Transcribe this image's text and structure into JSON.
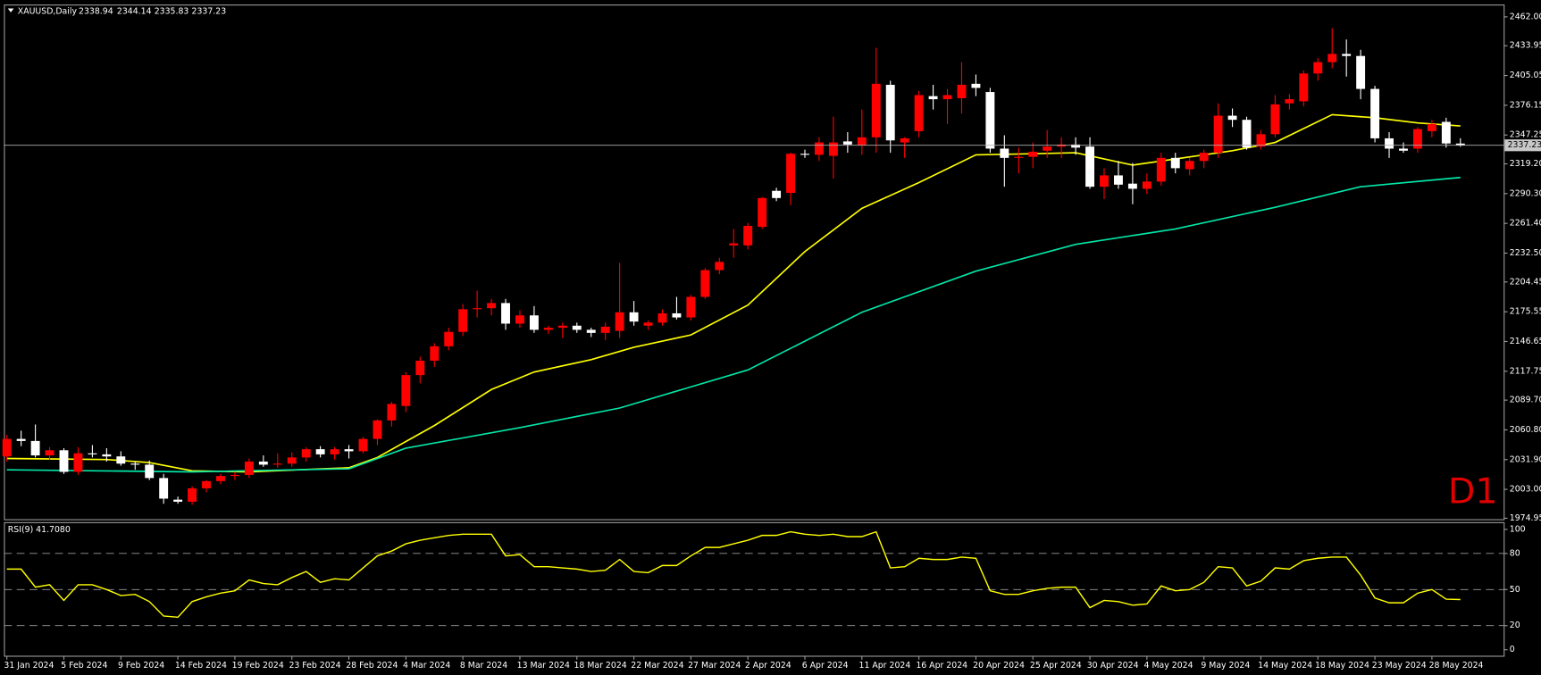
{
  "chart_data": [
    {
      "type": "candlestick",
      "title": "XAUUSD,Daily",
      "watermark": "D1",
      "categories": [
        "31 Jan 2024",
        null,
        null,
        null,
        "5 Feb 2024",
        null,
        null,
        null,
        "9 Feb 2024",
        null,
        null,
        null,
        "14 Feb 2024",
        null,
        null,
        null,
        "19 Feb 2024",
        null,
        null,
        null,
        "23 Feb 2024",
        null,
        null,
        null,
        "28 Feb 2024",
        null,
        null,
        null,
        "4 Mar 2024",
        null,
        null,
        null,
        "8 Mar 2024",
        null,
        null,
        null,
        "13 Mar 2024",
        null,
        null,
        null,
        "18 Mar 2024",
        null,
        null,
        null,
        "22 Mar 2024",
        null,
        null,
        null,
        "27 Mar 2024",
        null,
        null,
        null,
        "2 Apr 2024",
        null,
        null,
        null,
        "6 Apr 2024",
        null,
        null,
        null,
        "11 Apr 2024",
        null,
        null,
        null,
        "16 Apr 2024",
        null,
        null,
        null,
        "20 Apr 2024",
        null,
        null,
        null,
        "25 Apr 2024",
        null,
        null,
        null,
        "30 Apr 2024",
        null,
        null,
        null,
        "4 May 2024",
        null,
        null,
        null,
        "9 May 2024",
        null,
        null,
        null,
        "14 May 2024",
        null,
        null,
        null,
        "18 May 2024",
        null,
        null,
        null,
        "23 May 2024",
        null,
        null,
        null,
        "28 May 2024",
        null,
        null
      ],
      "open": [
        2035,
        2052,
        2050,
        2036,
        2041,
        2020,
        2038,
        2037,
        2035,
        2028,
        2027,
        2014,
        1993,
        1991,
        2004,
        2011,
        2016,
        2017,
        2030,
        2027,
        2028,
        2034,
        2042,
        2037,
        2042,
        2040,
        2052,
        2070,
        2084,
        2114,
        2128,
        2142,
        2156,
        2178,
        2179,
        2184,
        2164,
        2172,
        2158,
        2160,
        2162,
        2158,
        2155,
        2157,
        2175,
        2162,
        2165,
        2174,
        2170,
        2190,
        2216,
        2240,
        2240,
        2258,
        2293,
        2291,
        2329,
        2328,
        2327,
        2341,
        2337,
        2345,
        2396,
        2340,
        2351,
        2385,
        2382,
        2383,
        2397,
        2389,
        2334,
        2325,
        2326,
        2332,
        2336,
        2338,
        2336,
        2297,
        2308,
        2300,
        2295,
        2302,
        2325,
        2314,
        2322,
        2330,
        2366,
        2362,
        2336,
        2348,
        2378,
        2380,
        2407,
        2418,
        2426,
        2424,
        2392,
        2344,
        2334,
        2334,
        2351,
        2360,
        2338.94
      ],
      "high": [
        2056,
        2060,
        2066,
        2044,
        2043,
        2044,
        2046,
        2043,
        2040,
        2030,
        2031,
        2018,
        1996,
        2006,
        2012,
        2018,
        2020,
        2033,
        2036,
        2038,
        2039,
        2044,
        2045,
        2044,
        2046,
        2054,
        2071,
        2088,
        2117,
        2132,
        2145,
        2160,
        2183,
        2196,
        2188,
        2188,
        2177,
        2181,
        2162,
        2165,
        2165,
        2160,
        2165,
        2223,
        2186,
        2167,
        2178,
        2190,
        2192,
        2218,
        2228,
        2256,
        2262,
        2287,
        2296,
        2330,
        2333,
        2345,
        2365,
        2350,
        2372,
        2432,
        2400,
        2345,
        2390,
        2396,
        2392,
        2418,
        2406,
        2393,
        2347,
        2335,
        2340,
        2352,
        2345,
        2345,
        2345,
        2315,
        2322,
        2320,
        2310,
        2330,
        2330,
        2325,
        2333,
        2378,
        2373,
        2365,
        2352,
        2386,
        2387,
        2410,
        2422,
        2451,
        2440,
        2430,
        2395,
        2350,
        2340,
        2355,
        2362,
        2364,
        2344.14
      ],
      "low": [
        2030,
        2045,
        2034,
        2032,
        2018,
        2017,
        2034,
        2030,
        2026,
        2022,
        2012,
        1989,
        1989,
        1988,
        2000,
        2008,
        2012,
        2014,
        2025,
        2024,
        2025,
        2030,
        2034,
        2032,
        2033,
        2038,
        2046,
        2064,
        2078,
        2106,
        2122,
        2138,
        2152,
        2170,
        2172,
        2158,
        2160,
        2155,
        2154,
        2150,
        2155,
        2151,
        2148,
        2150,
        2162,
        2158,
        2162,
        2168,
        2167,
        2188,
        2212,
        2228,
        2236,
        2256,
        2283,
        2279,
        2325,
        2322,
        2305,
        2330,
        2328,
        2330,
        2330,
        2325,
        2345,
        2372,
        2358,
        2368,
        2385,
        2330,
        2297,
        2310,
        2315,
        2325,
        2325,
        2328,
        2295,
        2285,
        2295,
        2280,
        2290,
        2298,
        2310,
        2308,
        2315,
        2325,
        2355,
        2333,
        2333,
        2345,
        2372,
        2375,
        2400,
        2412,
        2404,
        2382,
        2340,
        2325,
        2330,
        2330,
        2345,
        2335,
        2335.83
      ],
      "close": [
        2052,
        2050,
        2036,
        2041,
        2020,
        2038,
        2037,
        2035,
        2028,
        2027,
        2014,
        1994,
        1991,
        2004,
        2011,
        2016,
        2017,
        2030,
        2027,
        2028,
        2034,
        2042,
        2037,
        2042,
        2040,
        2052,
        2070,
        2086,
        2114,
        2128,
        2142,
        2156,
        2178,
        2179,
        2184,
        2164,
        2172,
        2158,
        2160,
        2162,
        2158,
        2155,
        2161,
        2175,
        2166,
        2165,
        2174,
        2170,
        2190,
        2216,
        2224,
        2242,
        2259,
        2286,
        2286,
        2329,
        2328,
        2340,
        2340,
        2338,
        2345,
        2397,
        2342,
        2344,
        2386,
        2382,
        2386,
        2396,
        2393,
        2334,
        2325,
        2326,
        2331,
        2336,
        2338,
        2335,
        2297,
        2308,
        2299,
        2295,
        2302,
        2325,
        2315,
        2322,
        2330,
        2366,
        2362,
        2335,
        2348,
        2377,
        2382,
        2407,
        2418,
        2426,
        2424,
        2392,
        2344,
        2334,
        2332,
        2353,
        2358,
        2339,
        2337.23
      ],
      "up_color": "#ff0000",
      "down_color": "#ffffff",
      "ylim": [
        1974,
        2474
      ],
      "yticks": [
        {
          "value": 2462,
          "label": "2462.00"
        },
        2433.95,
        2405.05,
        2376.15,
        2347.25,
        {
          "value": 2319.2,
          "label": "2319.20"
        },
        {
          "value": 2290.3,
          "label": "2290.30"
        },
        {
          "value": 2261.4,
          "label": "2261.40"
        },
        {
          "value": 2232.5,
          "label": "2232.50"
        },
        2204.45,
        2175.55,
        2146.65,
        2117.75,
        {
          "value": 2089.7,
          "label": "2089.70"
        },
        {
          "value": 2060.8,
          "label": "2060.80"
        },
        {
          "value": 2031.9,
          "label": "2031.90"
        },
        {
          "value": 2003,
          "label": "2003.00"
        },
        1974.95
      ],
      "overlays": [
        {
          "color": "#ffff00",
          "x": [
            0,
            7,
            10,
            13,
            17,
            24,
            26,
            30,
            34,
            37,
            41,
            44,
            48,
            52,
            56,
            60,
            64,
            68,
            72,
            75,
            79,
            84,
            86,
            89,
            93,
            96,
            99,
            102
          ],
          "values": [
            2033,
            2032,
            2029,
            2021,
            2020,
            2024,
            2034,
            2065,
            2100,
            2117,
            2129,
            2141,
            2153,
            2182,
            2234,
            2276,
            2301,
            2328,
            2329,
            2330,
            2318,
            2328,
            2332,
            2340,
            2367,
            2364,
            2359,
            2356
          ]
        },
        {
          "color": "#00e6a8",
          "x": [
            0,
            13,
            24,
            28,
            36,
            43,
            52,
            60,
            68,
            75,
            82,
            89,
            95,
            102
          ],
          "values": [
            2022,
            2020,
            2023,
            2043,
            2063,
            2082,
            2119,
            2175,
            2215,
            2241,
            2256,
            2277,
            2297,
            2306
          ]
        }
      ]
    },
    {
      "type": "line",
      "title": "RSI(9) 41.7080",
      "color": "#ffff00",
      "values": [
        67,
        67,
        52,
        54,
        41,
        54,
        54,
        50,
        45,
        46,
        40,
        28,
        27,
        40,
        44,
        47,
        49,
        58,
        55,
        54,
        60,
        65,
        56,
        59,
        58,
        68,
        78,
        82,
        88,
        91,
        93,
        95,
        96,
        96,
        96,
        78,
        79,
        69,
        69,
        68,
        67,
        65,
        66,
        75,
        65,
        64,
        70,
        70,
        78,
        85,
        85,
        88,
        91,
        95,
        95,
        98,
        96,
        95,
        96,
        94,
        94,
        98,
        68,
        69,
        76,
        75,
        75,
        77,
        76,
        49,
        46,
        46,
        49,
        51,
        52,
        52,
        35,
        41,
        40,
        37,
        38,
        53,
        49,
        50,
        56,
        69,
        68,
        53,
        57,
        68,
        67,
        74,
        76,
        77,
        77,
        62,
        43,
        39,
        39,
        47,
        50,
        42,
        41.708
      ],
      "ylim": [
        -5,
        106
      ],
      "yticks": [
        100,
        80,
        50,
        20,
        0
      ],
      "levels": [
        80,
        50,
        20
      ]
    }
  ]
}
